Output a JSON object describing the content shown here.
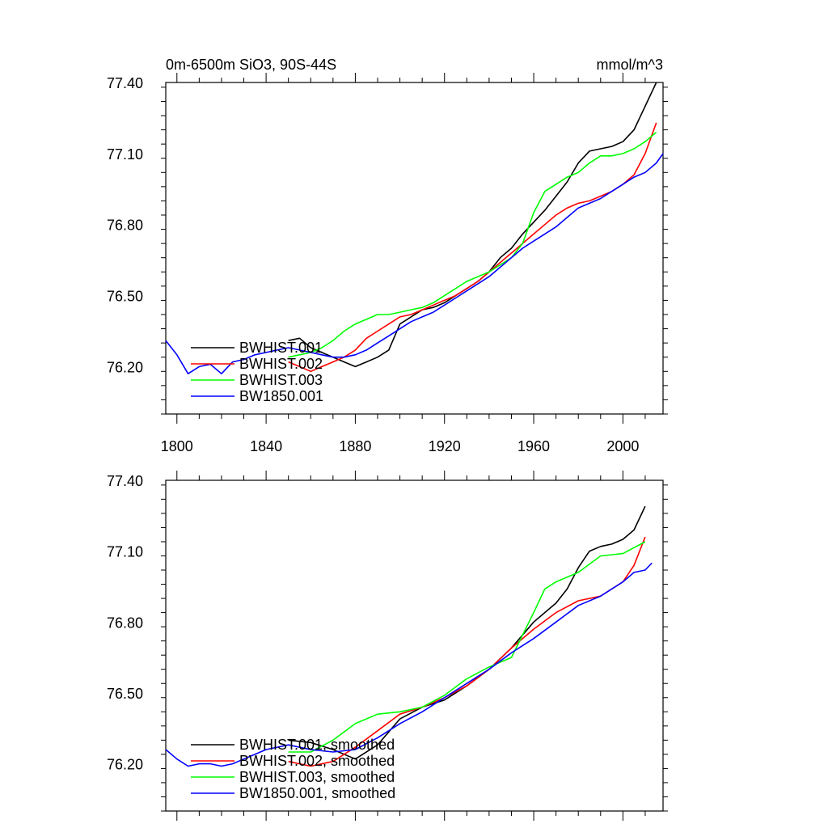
{
  "chart_data": [
    {
      "type": "line",
      "title": "0m-6500m SiO3, 90S-44S",
      "units": "mmol/m^3",
      "xlim": [
        1795,
        2018
      ],
      "ylim": [
        76.0,
        77.4
      ],
      "xticks": [
        1800,
        1840,
        1880,
        1920,
        1960,
        2000
      ],
      "xticklabels": [
        "1800",
        "1840",
        "1880",
        "1920",
        "1960",
        "2000"
      ],
      "yticks": [
        76.2,
        76.5,
        76.8,
        77.1,
        77.4
      ],
      "yticklabels": [
        "76.20",
        "76.50",
        "76.80",
        "77.10",
        "77.40"
      ],
      "legend_position": "bottom-left",
      "series": [
        {
          "name": "BWHIST.001",
          "color": "#000000",
          "x": [
            1850,
            1855,
            1860,
            1865,
            1870,
            1875,
            1880,
            1885,
            1890,
            1895,
            1900,
            1905,
            1910,
            1915,
            1920,
            1925,
            1930,
            1935,
            1940,
            1945,
            1950,
            1955,
            1960,
            1965,
            1970,
            1975,
            1980,
            1985,
            1990,
            1995,
            2000,
            2005,
            2010,
            2015
          ],
          "y": [
            76.31,
            76.32,
            76.28,
            76.26,
            76.24,
            76.22,
            76.2,
            76.22,
            76.24,
            76.27,
            76.38,
            76.41,
            76.44,
            76.45,
            76.47,
            76.5,
            76.53,
            76.56,
            76.6,
            76.66,
            76.7,
            76.76,
            76.81,
            76.86,
            76.92,
            76.98,
            77.06,
            77.11,
            77.12,
            77.13,
            77.15,
            77.2,
            77.3,
            77.4
          ]
        },
        {
          "name": "BWHIST.002",
          "color": "#ff0000",
          "x": [
            1850,
            1855,
            1860,
            1865,
            1870,
            1875,
            1880,
            1885,
            1890,
            1895,
            1900,
            1905,
            1910,
            1915,
            1920,
            1925,
            1930,
            1935,
            1940,
            1945,
            1950,
            1955,
            1960,
            1965,
            1970,
            1975,
            1980,
            1985,
            1990,
            1995,
            2000,
            2005,
            2010,
            2015
          ],
          "y": [
            76.22,
            76.2,
            76.18,
            76.2,
            76.22,
            76.24,
            76.27,
            76.32,
            76.35,
            76.38,
            76.41,
            76.42,
            76.44,
            76.46,
            76.48,
            76.5,
            76.53,
            76.56,
            76.6,
            76.64,
            76.68,
            76.72,
            76.76,
            76.8,
            76.84,
            76.87,
            76.89,
            76.9,
            76.92,
            76.94,
            76.97,
            77.01,
            77.1,
            77.23
          ]
        },
        {
          "name": "BWHIST.003",
          "color": "#00ff00",
          "x": [
            1850,
            1855,
            1860,
            1865,
            1870,
            1875,
            1880,
            1885,
            1890,
            1895,
            1900,
            1905,
            1910,
            1915,
            1920,
            1925,
            1930,
            1935,
            1940,
            1945,
            1950,
            1955,
            1960,
            1965,
            1970,
            1975,
            1980,
            1985,
            1990,
            1995,
            2000,
            2005,
            2010,
            2015
          ],
          "y": [
            76.24,
            76.25,
            76.26,
            76.28,
            76.31,
            76.35,
            76.38,
            76.4,
            76.42,
            76.42,
            76.43,
            76.44,
            76.45,
            76.47,
            76.5,
            76.53,
            76.56,
            76.58,
            76.6,
            76.63,
            76.66,
            76.72,
            76.85,
            76.94,
            76.97,
            77.0,
            77.02,
            77.06,
            77.09,
            77.09,
            77.1,
            77.12,
            77.15,
            77.19
          ]
        },
        {
          "name": "BW1850.001",
          "color": "#0000ff",
          "x": [
            1795,
            1800,
            1805,
            1810,
            1815,
            1820,
            1825,
            1830,
            1835,
            1840,
            1845,
            1850,
            1855,
            1860,
            1865,
            1870,
            1875,
            1880,
            1885,
            1890,
            1895,
            1900,
            1905,
            1910,
            1915,
            1920,
            1925,
            1930,
            1935,
            1940,
            1945,
            1950,
            1955,
            1960,
            1965,
            1970,
            1975,
            1980,
            1985,
            1990,
            1995,
            2000,
            2005,
            2010,
            2015,
            2018
          ],
          "y": [
            76.31,
            76.25,
            76.17,
            76.2,
            76.21,
            76.17,
            76.22,
            76.23,
            76.25,
            76.26,
            76.27,
            76.28,
            76.27,
            76.26,
            76.25,
            76.24,
            76.24,
            76.25,
            76.27,
            76.3,
            76.33,
            76.36,
            76.39,
            76.41,
            76.43,
            76.46,
            76.49,
            76.52,
            76.55,
            76.58,
            76.62,
            76.66,
            76.7,
            76.73,
            76.76,
            76.79,
            76.83,
            76.87,
            76.89,
            76.91,
            76.94,
            76.97,
            77.0,
            77.02,
            77.06,
            77.1
          ]
        }
      ]
    },
    {
      "type": "line",
      "title": "",
      "xlim": [
        1795,
        2018
      ],
      "ylim": [
        76.0,
        77.4
      ],
      "yticks": [
        76.2,
        76.5,
        76.8,
        77.1,
        77.4
      ],
      "yticklabels": [
        "76.20",
        "76.50",
        "76.80",
        "77.10",
        "77.40"
      ],
      "legend_position": "bottom-left",
      "series": [
        {
          "name": "BWHIST.001, smoothed",
          "color": "#000000",
          "x": [
            1850,
            1860,
            1870,
            1880,
            1890,
            1900,
            1910,
            1920,
            1930,
            1940,
            1950,
            1960,
            1970,
            1975,
            1980,
            1985,
            1990,
            1995,
            2000,
            2005,
            2010
          ],
          "y": [
            76.3,
            76.29,
            76.26,
            76.22,
            76.28,
            76.39,
            76.44,
            76.47,
            76.53,
            76.6,
            76.69,
            76.8,
            76.88,
            76.94,
            77.03,
            77.1,
            77.12,
            77.13,
            77.15,
            77.19,
            77.29
          ]
        },
        {
          "name": "BWHIST.002, smoothed",
          "color": "#ff0000",
          "x": [
            1850,
            1860,
            1870,
            1880,
            1890,
            1900,
            1910,
            1920,
            1930,
            1940,
            1950,
            1960,
            1970,
            1980,
            1990,
            2000,
            2005,
            2010
          ],
          "y": [
            76.21,
            76.19,
            76.21,
            76.27,
            76.34,
            76.41,
            76.44,
            76.48,
            76.53,
            76.6,
            76.69,
            76.77,
            76.84,
            76.89,
            76.91,
            76.97,
            77.04,
            77.16
          ]
        },
        {
          "name": "BWHIST.003, smoothed",
          "color": "#00ff00",
          "x": [
            1850,
            1860,
            1870,
            1880,
            1890,
            1900,
            1910,
            1920,
            1930,
            1940,
            1950,
            1960,
            1965,
            1970,
            1980,
            1990,
            2000,
            2010
          ],
          "y": [
            76.25,
            76.25,
            76.3,
            76.37,
            76.41,
            76.42,
            76.44,
            76.49,
            76.56,
            76.61,
            76.65,
            76.84,
            76.94,
            76.97,
            77.01,
            77.08,
            77.09,
            77.14
          ]
        },
        {
          "name": "BW1850.001, smoothed",
          "color": "#0000ff",
          "x": [
            1795,
            1800,
            1805,
            1810,
            1815,
            1820,
            1825,
            1830,
            1835,
            1840,
            1845,
            1850,
            1860,
            1870,
            1880,
            1890,
            1900,
            1910,
            1920,
            1930,
            1940,
            1950,
            1960,
            1970,
            1980,
            1990,
            2000,
            2005,
            2010,
            2013
          ],
          "y": [
            76.26,
            76.22,
            76.19,
            76.2,
            76.2,
            76.19,
            76.2,
            76.22,
            76.24,
            76.26,
            76.27,
            76.28,
            76.26,
            76.25,
            76.26,
            76.31,
            76.37,
            76.42,
            76.48,
            76.54,
            76.6,
            76.67,
            76.73,
            76.8,
            76.87,
            76.91,
            76.97,
            77.01,
            77.02,
            77.05
          ]
        }
      ]
    }
  ]
}
